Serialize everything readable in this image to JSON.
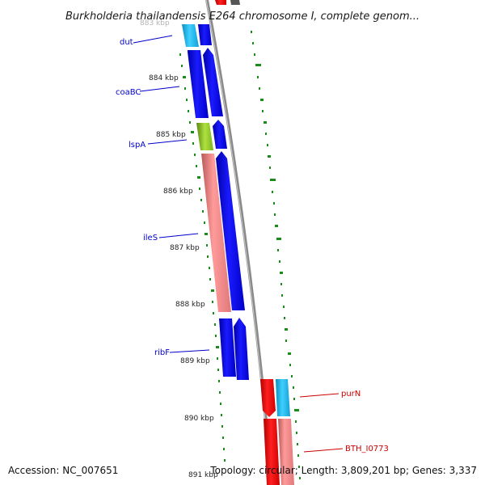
{
  "title": "Burkholderia thailandensis E264 chromosome I, complete genom...",
  "footer": {
    "accession": "Accession: NC_007651",
    "topology": "Topology: circular; Length: 3,809,201 bp; Genes: 3,337"
  },
  "ticks": [
    {
      "label": "883 kbp"
    },
    {
      "label": "884 kbp"
    },
    {
      "label": "885 kbp"
    },
    {
      "label": "886 kbp"
    },
    {
      "label": "887 kbp"
    },
    {
      "label": "888 kbp"
    },
    {
      "label": "889 kbp"
    },
    {
      "label": "890 kbp"
    },
    {
      "label": "891 kbp"
    }
  ],
  "gene_labels": [
    {
      "name": "dut",
      "color": "#0000cc"
    },
    {
      "name": "coaBC",
      "color": "#0000cc"
    },
    {
      "name": "lspA",
      "color": "#0000cc"
    },
    {
      "name": "ileS",
      "color": "#0000cc"
    },
    {
      "name": "ribF",
      "color": "#0000cc"
    },
    {
      "name": "purN",
      "color": "#cc0000"
    },
    {
      "name": "BTH_I0773",
      "color": "#cc0000"
    }
  ],
  "colors": {
    "cds_blue": "#0000ff",
    "cds_cyan": "#1fb6e6",
    "cds_green": "#7ab51d",
    "cds_pink": "#f08a8a",
    "cds_red": "#ff0000",
    "backbone": "#8a8a8a",
    "gc_marks": "#1a8c1a"
  }
}
